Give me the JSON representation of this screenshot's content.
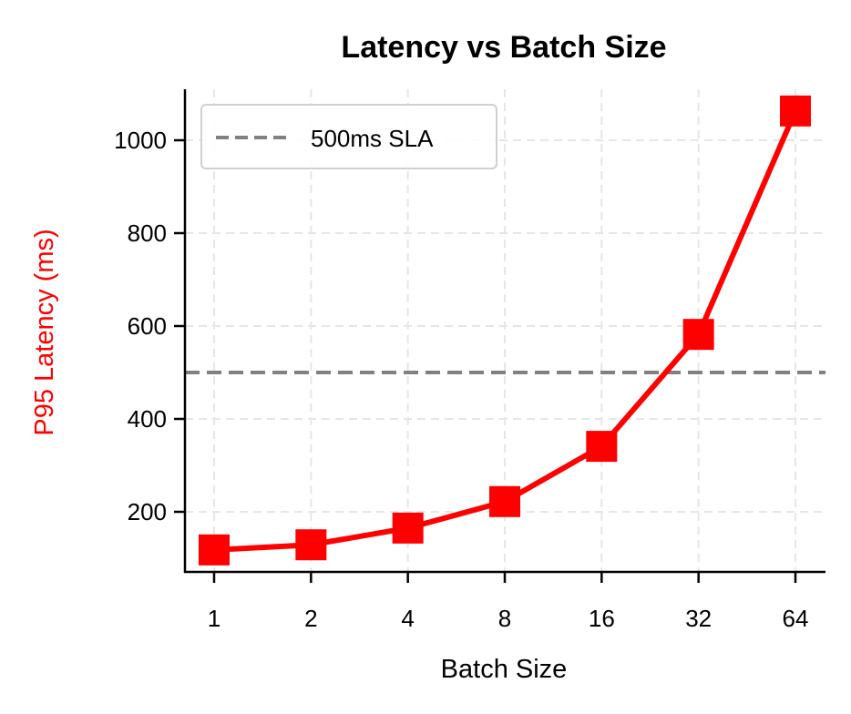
{
  "chart_data": {
    "type": "line",
    "title": "Latency vs Batch Size",
    "xlabel": "Batch Size",
    "ylabel": "P95 Latency (ms)",
    "x": [
      1,
      2,
      4,
      8,
      16,
      32,
      64
    ],
    "categories": [
      "1",
      "2",
      "4",
      "8",
      "16",
      "32",
      "64"
    ],
    "x_scale": "log2",
    "yticks": [
      200,
      400,
      600,
      800,
      1000
    ],
    "ytick_labels": [
      "200",
      "400",
      "600",
      "800",
      "1000"
    ],
    "ylim": [
      70,
      1110
    ],
    "grid": true,
    "legend_position": "upper left",
    "series": [
      {
        "name": "P95 Latency",
        "values": [
          118,
          129,
          165,
          222,
          341,
          582,
          1063
        ],
        "color": "#ff0000",
        "marker": "square"
      }
    ],
    "reference_lines": [
      {
        "name": "500ms SLA",
        "y": 500,
        "color": "#808080",
        "style": "dashed"
      }
    ]
  },
  "legend": {
    "items": [
      {
        "label": "500ms SLA",
        "color": "#808080"
      }
    ]
  },
  "colors": {
    "series": "#ff0000",
    "sla": "#808080",
    "grid": "#e6e6e6",
    "ylabel": "#ff0000"
  }
}
